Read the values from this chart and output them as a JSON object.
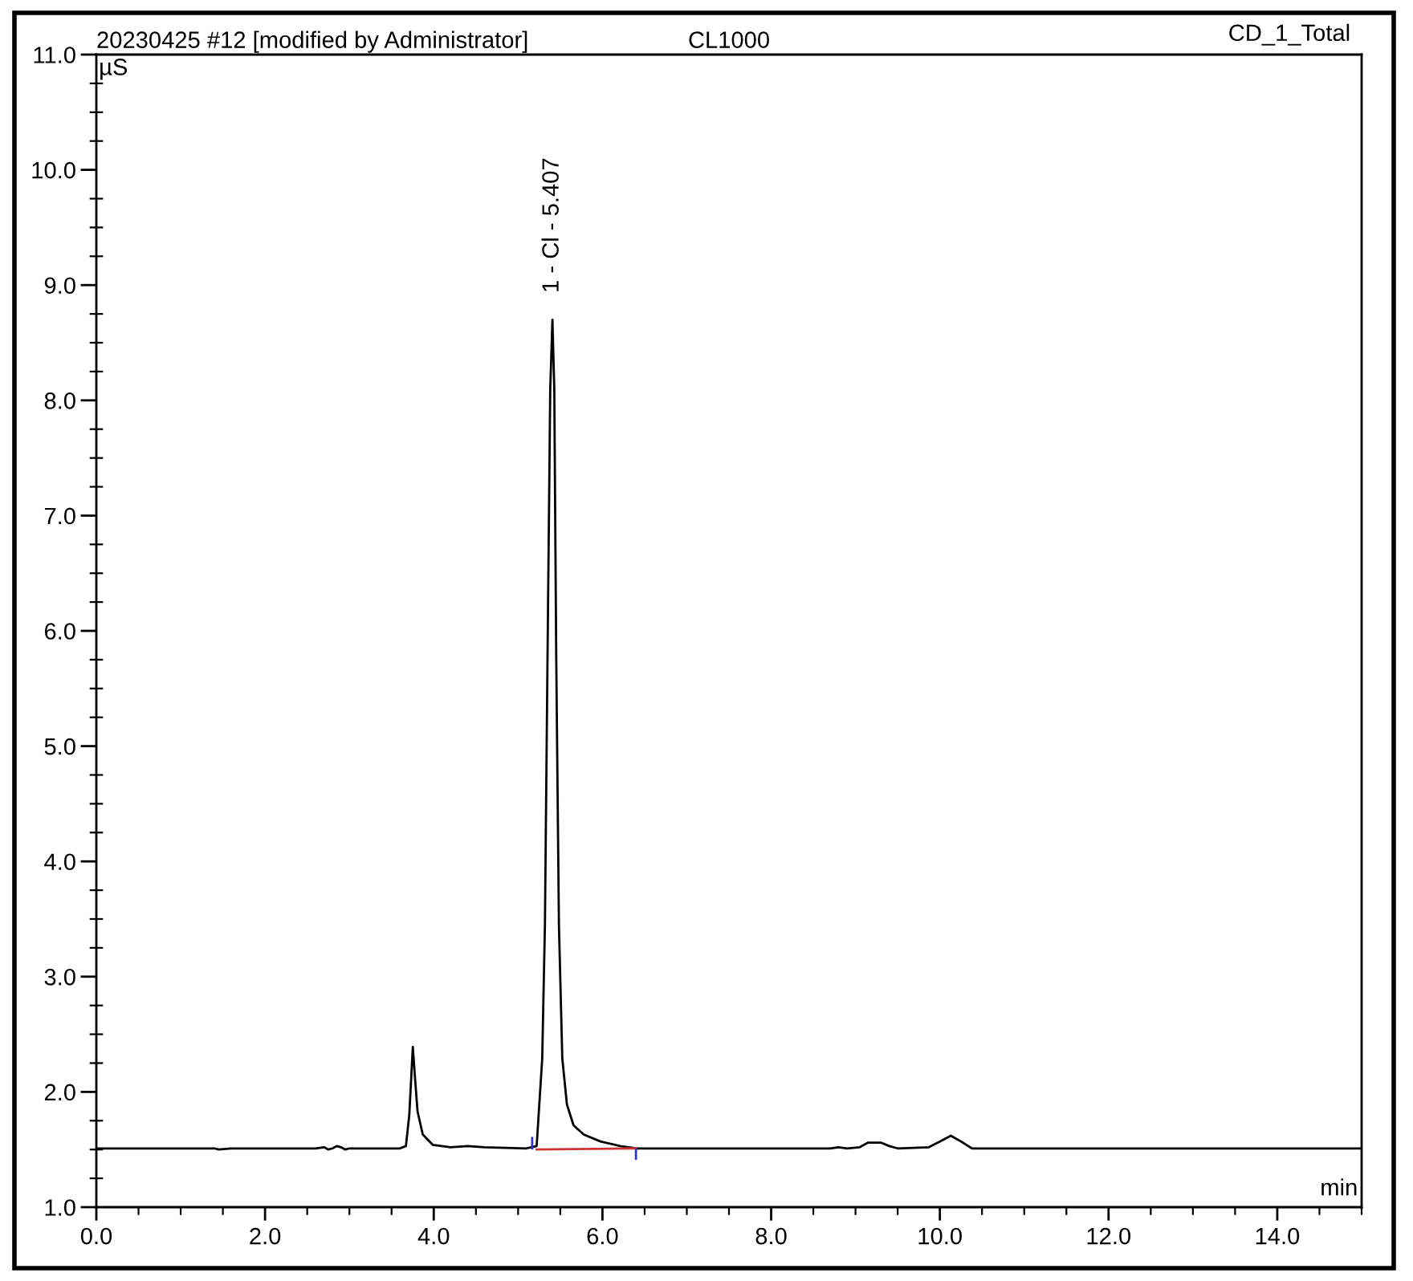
{
  "chart_data": {
    "type": "line",
    "title": "20230425 #12 [modified by Administrator]",
    "subtitle": "CL1000",
    "xlabel": "min",
    "ylabel": "µS",
    "annotations": [
      "CD_1_Total",
      {
        "text": "1 - Cl - 5.407",
        "x": 5.407,
        "y": 8.7
      }
    ],
    "xlim": [
      0,
      15
    ],
    "xticks": [
      {
        "value": 0,
        "label": "0.0"
      },
      {
        "value": 2,
        "label": "2.0"
      },
      {
        "value": 4,
        "label": "4.0"
      },
      {
        "value": 6,
        "label": "6.0"
      },
      {
        "value": 8,
        "label": "8.0"
      },
      {
        "value": 10,
        "label": "10.0"
      },
      {
        "value": 12,
        "label": "12.0"
      },
      {
        "value": 14,
        "label": "14.0"
      }
    ],
    "ylim": [
      1,
      11
    ],
    "yticks": [
      {
        "value": 1,
        "label": "1.0"
      },
      {
        "value": 2,
        "label": "2.0"
      },
      {
        "value": 3,
        "label": "3.0"
      },
      {
        "value": 4,
        "label": "4.0"
      },
      {
        "value": 5,
        "label": "5.0"
      },
      {
        "value": 6,
        "label": "6.0"
      },
      {
        "value": 7,
        "label": "7.0"
      },
      {
        "value": 8,
        "label": "8.0"
      },
      {
        "value": 9,
        "label": "9.0"
      },
      {
        "value": 10,
        "label": "10.0"
      },
      {
        "value": 11,
        "label": "11.0"
      }
    ],
    "line_style": "solid",
    "series": [
      {
        "color": "#000000",
        "x": [
          0.0,
          1.4,
          1.45,
          1.6,
          2.0,
          2.6,
          2.7,
          2.75,
          2.8,
          2.85,
          2.9,
          2.95,
          3.0,
          3.6,
          3.67,
          3.71,
          3.752,
          3.78,
          3.808,
          3.87,
          3.99,
          4.2,
          4.4,
          4.6,
          5.1,
          5.22,
          5.286,
          5.318,
          5.349,
          5.381,
          5.407,
          5.429,
          5.452,
          5.484,
          5.524,
          5.579,
          5.657,
          5.778,
          5.976,
          6.21,
          6.41,
          6.9,
          8.7,
          8.8,
          8.9,
          9.05,
          9.15,
          9.3,
          9.4,
          9.5,
          9.87,
          10.0,
          10.13,
          10.25,
          10.38,
          15.0
        ],
        "values": [
          1.51,
          1.51,
          1.5,
          1.51,
          1.51,
          1.51,
          1.52,
          1.5,
          1.51,
          1.53,
          1.52,
          1.5,
          1.51,
          1.51,
          1.53,
          1.8,
          2.39,
          2.1,
          1.83,
          1.63,
          1.54,
          1.52,
          1.53,
          1.52,
          1.51,
          1.53,
          2.29,
          3.45,
          5.78,
          8.1,
          8.7,
          8.1,
          5.78,
          3.45,
          2.29,
          1.89,
          1.71,
          1.63,
          1.57,
          1.53,
          1.51,
          1.51,
          1.51,
          1.52,
          1.51,
          1.52,
          1.56,
          1.56,
          1.53,
          1.51,
          1.52,
          1.57,
          1.62,
          1.57,
          1.51,
          1.51
        ]
      },
      {
        "color": "#cc3333",
        "x": [
          5.22,
          6.397
        ],
        "values": [
          1.5,
          1.51
        ]
      },
      {
        "color": "#3333cc",
        "x": [
          5.167,
          5.167
        ],
        "values": [
          1.51,
          1.6
        ]
      },
      {
        "color": "#3333cc",
        "x": [
          6.397,
          6.397
        ],
        "values": [
          1.5,
          1.42
        ]
      }
    ]
  }
}
